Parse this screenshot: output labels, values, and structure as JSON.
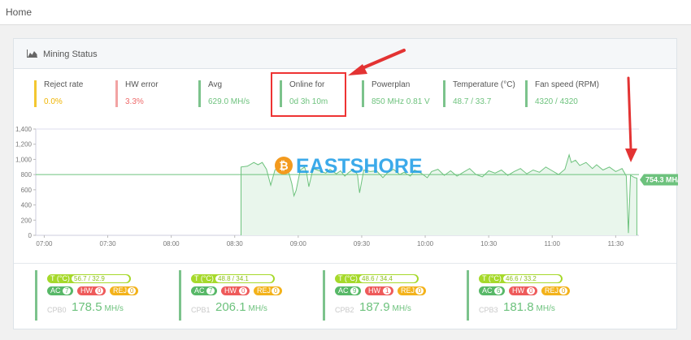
{
  "breadcrumb": {
    "home": "Home"
  },
  "panel": {
    "title": "Mining Status",
    "icon": "area-chart-icon"
  },
  "stats": [
    {
      "label": "Reject rate",
      "value": "0.0%",
      "color": "yellow"
    },
    {
      "label": "HW error",
      "value": "3.3%",
      "color": "red"
    },
    {
      "label": "Avg",
      "value": "629.0 MH/s",
      "color": "green"
    },
    {
      "label": "Online for",
      "value": "0d 3h 10m",
      "color": "green"
    },
    {
      "label": "Powerplan",
      "value": "850 MHz 0.81 V",
      "color": "green"
    },
    {
      "label": "Temperature (°C)",
      "value": "48.7 / 33.7",
      "color": "green"
    },
    {
      "label": "Fan speed (RPM)",
      "value": "4320 / 4320",
      "color": "green"
    }
  ],
  "watermark": "EASTSHORE",
  "chart_data": {
    "type": "area",
    "yticks": [
      "0",
      "200",
      "400",
      "600",
      "800",
      "1,000",
      "1,200",
      "1,400"
    ],
    "ylim": [
      0,
      1400
    ],
    "xticks": [
      "07:00",
      "07:30",
      "08:00",
      "08:30",
      "09:00",
      "09:30",
      "10:00",
      "10:30",
      "11:00",
      "11:30"
    ],
    "x_start": "06:56",
    "x_end": "11:41",
    "reference_line": 800,
    "current_label": "754.3 MH/s",
    "series": [
      {
        "values": [
          [
            "08:33",
            0
          ],
          [
            "08:33",
            900
          ],
          [
            "08:36",
            910
          ],
          [
            "08:39",
            960
          ],
          [
            "08:41",
            930
          ],
          [
            "08:43",
            960
          ],
          [
            "08:45",
            870
          ],
          [
            "08:47",
            660
          ],
          [
            "08:49",
            860
          ],
          [
            "08:51",
            900
          ],
          [
            "08:53",
            860
          ],
          [
            "08:55",
            880
          ],
          [
            "08:57",
            680
          ],
          [
            "08:58",
            520
          ],
          [
            "08:59",
            590
          ],
          [
            "09:01",
            860
          ],
          [
            "09:03",
            900
          ],
          [
            "09:04",
            820
          ],
          [
            "09:05",
            640
          ],
          [
            "09:07",
            880
          ],
          [
            "09:10",
            850
          ],
          [
            "09:13",
            820
          ],
          [
            "09:15",
            870
          ],
          [
            "09:18",
            810
          ],
          [
            "09:20",
            850
          ],
          [
            "09:22",
            780
          ],
          [
            "09:24",
            830
          ],
          [
            "09:26",
            870
          ],
          [
            "09:28",
            800
          ],
          [
            "09:29",
            560
          ],
          [
            "09:31",
            860
          ],
          [
            "09:34",
            840
          ],
          [
            "09:37",
            850
          ],
          [
            "09:40",
            760
          ],
          [
            "09:42",
            820
          ],
          [
            "09:45",
            870
          ],
          [
            "09:48",
            800
          ],
          [
            "09:50",
            830
          ],
          [
            "09:53",
            780
          ],
          [
            "09:55",
            860
          ],
          [
            "09:58",
            820
          ],
          [
            "10:01",
            760
          ],
          [
            "10:03",
            840
          ],
          [
            "10:06",
            870
          ],
          [
            "10:09",
            790
          ],
          [
            "10:12",
            850
          ],
          [
            "10:15",
            780
          ],
          [
            "10:18",
            830
          ],
          [
            "10:21",
            880
          ],
          [
            "10:24",
            800
          ],
          [
            "10:27",
            770
          ],
          [
            "10:30",
            850
          ],
          [
            "10:33",
            820
          ],
          [
            "10:36",
            860
          ],
          [
            "10:39",
            790
          ],
          [
            "10:42",
            840
          ],
          [
            "10:45",
            880
          ],
          [
            "10:48",
            810
          ],
          [
            "10:51",
            860
          ],
          [
            "10:54",
            830
          ],
          [
            "10:57",
            900
          ],
          [
            "11:00",
            850
          ],
          [
            "11:03",
            800
          ],
          [
            "11:06",
            870
          ],
          [
            "11:08",
            1060
          ],
          [
            "11:09",
            960
          ],
          [
            "11:11",
            990
          ],
          [
            "11:13",
            920
          ],
          [
            "11:16",
            960
          ],
          [
            "11:19",
            880
          ],
          [
            "11:21",
            930
          ],
          [
            "11:24",
            860
          ],
          [
            "11:27",
            900
          ],
          [
            "11:30",
            840
          ],
          [
            "11:33",
            880
          ],
          [
            "11:35",
            780
          ],
          [
            "11:36",
            30
          ],
          [
            "11:37",
            790
          ],
          [
            "11:39",
            760
          ],
          [
            "11:40",
            754
          ],
          [
            "11:40",
            0
          ]
        ]
      }
    ]
  },
  "cards": [
    {
      "name": "CPB0",
      "temp_label": "T (°C)",
      "temp": "56.7 / 32.9",
      "ac_label": "AC",
      "ac": "7",
      "hw_label": "HW",
      "hw": "0",
      "rej_label": "REJ",
      "rej": "0",
      "rate": "178.5",
      "unit": "MH/s"
    },
    {
      "name": "CPB1",
      "temp_label": "T (°C)",
      "temp": "48.8 / 34.1",
      "ac_label": "AC",
      "ac": "7",
      "hw_label": "HW",
      "hw": "0",
      "rej_label": "REJ",
      "rej": "0",
      "rate": "206.1",
      "unit": "MH/s"
    },
    {
      "name": "CPB2",
      "temp_label": "T (°C)",
      "temp": "48.6 / 34.4",
      "ac_label": "AC",
      "ac": "9",
      "hw_label": "HW",
      "hw": "1",
      "rej_label": "REJ",
      "rej": "0",
      "rate": "187.9",
      "unit": "MH/s"
    },
    {
      "name": "CPB3",
      "temp_label": "T (°C)",
      "temp": "46.6 / 33.2",
      "ac_label": "AC",
      "ac": "6",
      "hw_label": "HW",
      "hw": "0",
      "rej_label": "REJ",
      "rej": "0",
      "rate": "181.8",
      "unit": "MH/s"
    }
  ],
  "colors": {
    "green": "#6dc27d",
    "highlight": "#e33333",
    "watermark": "#1a9be6",
    "coin": "#f39a1e"
  }
}
